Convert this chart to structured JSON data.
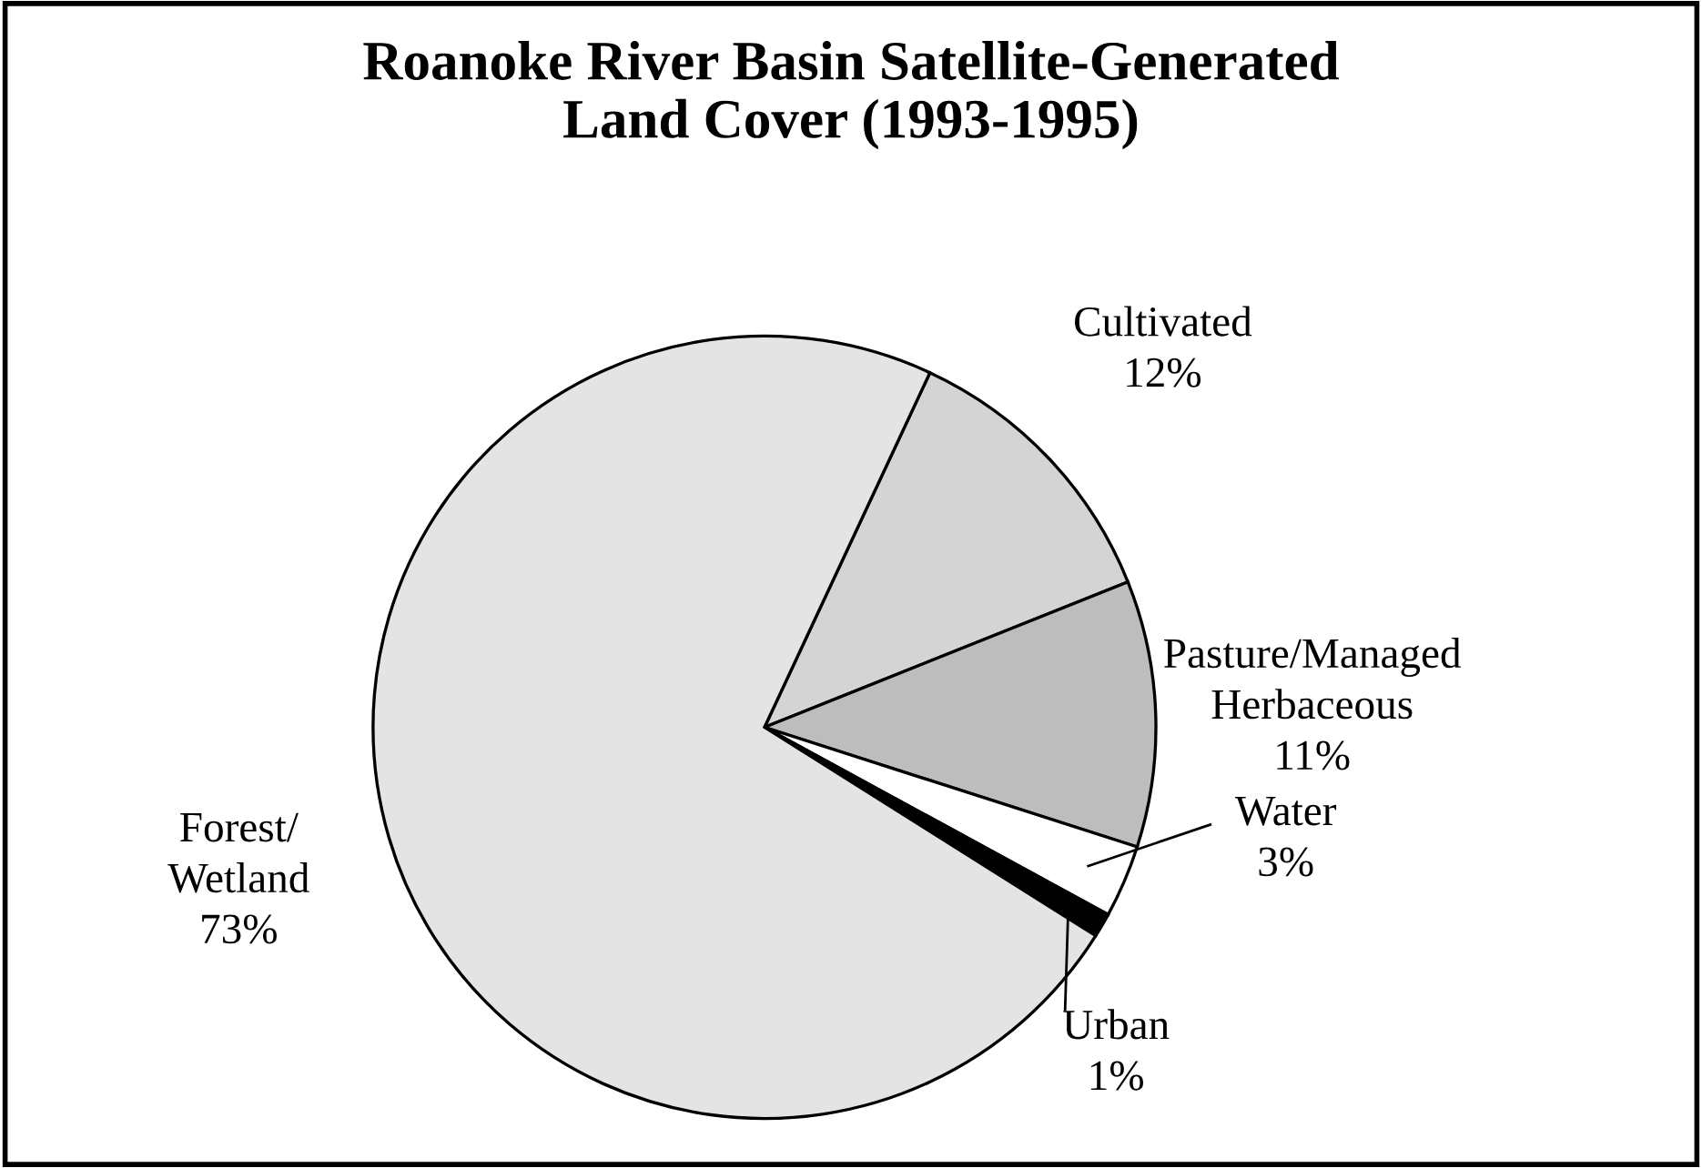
{
  "chart_data": {
    "type": "pie",
    "title": "Roanoke River Basin Satellite-Generated\nLand Cover (1993-1995)",
    "categories": [
      "Cultivated",
      "Pasture/Managed\nHerbaceous",
      "Water",
      "Urban",
      "Forest/\nWetland"
    ],
    "values": [
      12,
      11,
      3,
      1,
      73
    ],
    "value_labels": [
      "12%",
      "11%",
      "3%",
      "1%",
      "73%"
    ],
    "colors": [
      "#d4d4d4",
      "#bdbdbd",
      "#ffffff",
      "#000000",
      "#e4e4e4"
    ]
  }
}
